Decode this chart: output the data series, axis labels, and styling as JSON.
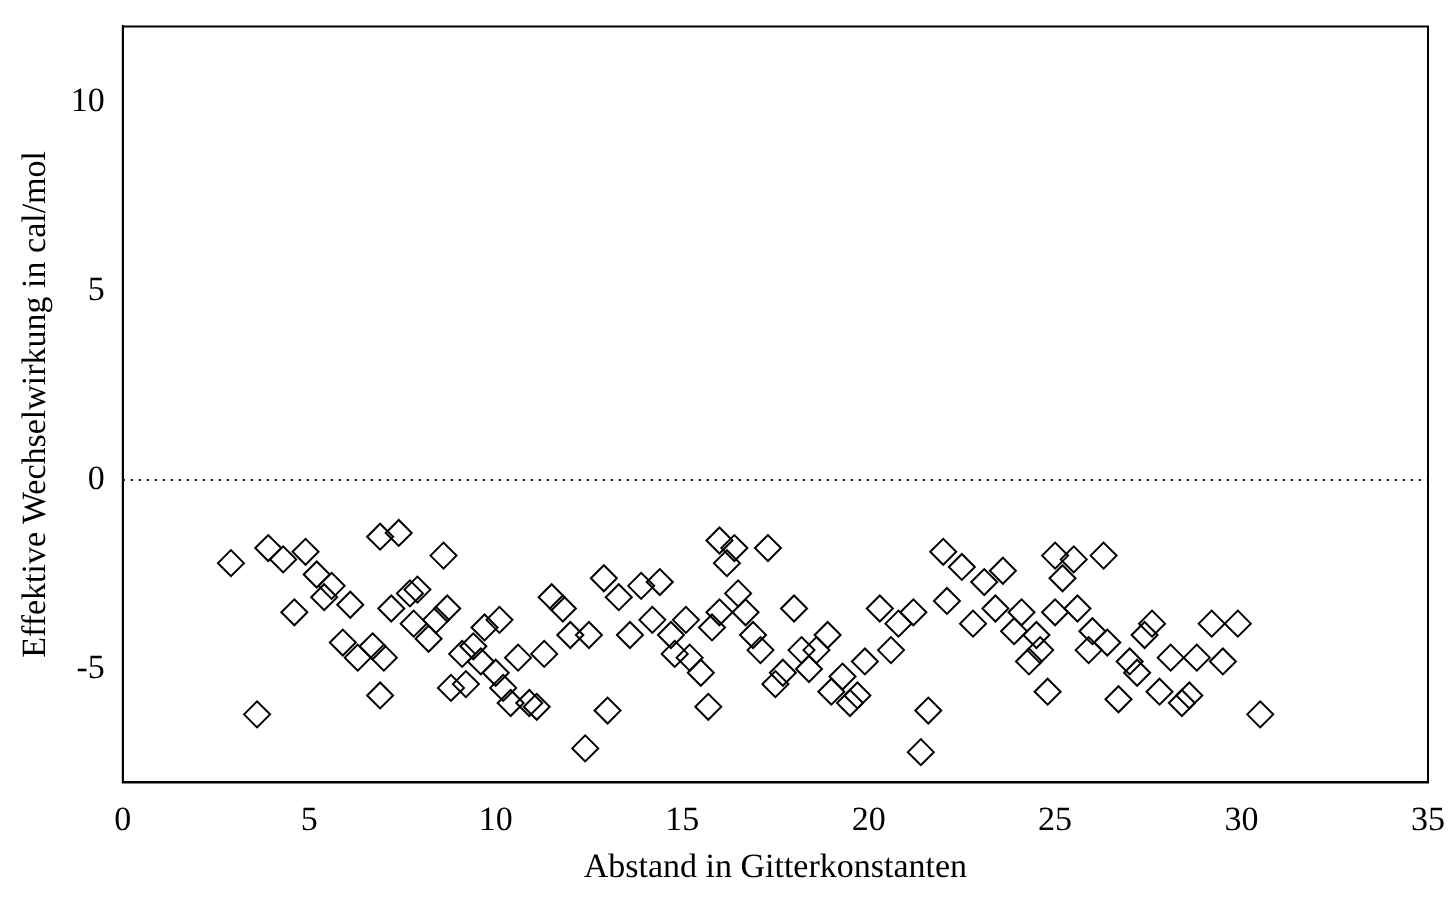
{
  "chart_data": {
    "type": "scatter",
    "xlabel": "Abstand in Gitterkonstanten",
    "ylabel": "Effektive Wechselwirkung in cal/mol",
    "xlim": [
      0,
      35
    ],
    "xticks": [
      0,
      5,
      10,
      15,
      20,
      25,
      30,
      35
    ],
    "ylim": [
      -8,
      12
    ],
    "yticks": [
      -5,
      0,
      5,
      10
    ],
    "grid": false,
    "legend": false,
    "marker": "diamond",
    "ref_lines": [
      {
        "axis": "y",
        "value": 0,
        "line_style": "dotted",
        "color": "#000000"
      }
    ],
    "series": [
      {
        "color": "#000000",
        "x": [
          2.9,
          3.6,
          3.9,
          4.3,
          4.6,
          4.9,
          5.2,
          5.4,
          5.6,
          5.9,
          6.1,
          6.3,
          6.7,
          6.9,
          6.9,
          7.0,
          7.2,
          7.4,
          7.7,
          7.8,
          7.9,
          8.2,
          8.4,
          8.6,
          8.7,
          8.8,
          9.1,
          9.2,
          9.4,
          9.6,
          9.7,
          10.0,
          10.1,
          10.2,
          10.4,
          10.6,
          10.9,
          11.1,
          11.3,
          11.5,
          11.8,
          12.0,
          12.4,
          12.5,
          12.9,
          13.0,
          13.3,
          13.6,
          13.9,
          14.2,
          14.4,
          14.7,
          14.8,
          15.1,
          15.2,
          15.5,
          15.7,
          15.8,
          16.0,
          16.0,
          16.2,
          16.4,
          16.5,
          16.7,
          16.9,
          17.1,
          17.3,
          17.5,
          17.7,
          18.0,
          18.2,
          18.4,
          18.6,
          18.9,
          19.0,
          19.3,
          19.5,
          19.7,
          19.9,
          20.3,
          20.6,
          20.8,
          21.2,
          21.4,
          21.6,
          22.0,
          22.1,
          22.5,
          22.8,
          23.1,
          23.4,
          23.6,
          23.9,
          24.1,
          24.3,
          24.5,
          24.6,
          24.8,
          25.0,
          25.0,
          25.2,
          25.5,
          25.6,
          25.9,
          26.0,
          26.3,
          26.4,
          26.7,
          27.0,
          27.2,
          27.4,
          27.6,
          27.8,
          28.1,
          28.4,
          28.6,
          28.8,
          29.2,
          29.5,
          29.9,
          30.5
        ],
        "values": [
          -2.2,
          -6.2,
          -1.8,
          -2.1,
          -3.5,
          -1.9,
          -2.5,
          -3.1,
          -2.8,
          -4.3,
          -3.3,
          -4.7,
          -4.4,
          -1.5,
          -5.7,
          -4.7,
          -3.4,
          -1.4,
          -3.0,
          -3.8,
          -2.9,
          -4.2,
          -3.7,
          -2.0,
          -3.4,
          -5.5,
          -4.6,
          -5.4,
          -4.4,
          -4.8,
          -3.9,
          -5.1,
          -3.7,
          -5.5,
          -5.9,
          -4.7,
          -5.9,
          -6.0,
          -4.6,
          -3.1,
          -3.4,
          -4.1,
          -7.1,
          -4.1,
          -2.6,
          -6.1,
          -3.1,
          -4.1,
          -2.8,
          -3.7,
          -2.7,
          -4.1,
          -4.6,
          -3.7,
          -4.7,
          -5.1,
          -6.0,
          -3.9,
          -3.5,
          -1.6,
          -2.2,
          -1.8,
          -3.0,
          -3.5,
          -4.1,
          -4.5,
          -1.8,
          -5.4,
          -5.1,
          -3.4,
          -4.5,
          -5.0,
          -4.5,
          -4.1,
          -5.6,
          -5.2,
          -5.9,
          -5.7,
          -4.8,
          -3.4,
          -4.5,
          -3.8,
          -3.5,
          -7.2,
          -6.1,
          -1.9,
          -3.2,
          -2.3,
          -3.8,
          -2.7,
          -3.4,
          -2.4,
          -4.0,
          -3.5,
          -4.8,
          -4.1,
          -4.5,
          -5.6,
          -3.5,
          -2.0,
          -2.6,
          -2.1,
          -3.4,
          -4.5,
          -4.0,
          -2.0,
          -4.3,
          -5.8,
          -4.8,
          -5.1,
          -4.1,
          -3.8,
          -5.6,
          -4.7,
          -5.9,
          -5.7,
          -4.7,
          -3.8,
          -4.8,
          -3.8,
          -6.2
        ]
      }
    ]
  }
}
